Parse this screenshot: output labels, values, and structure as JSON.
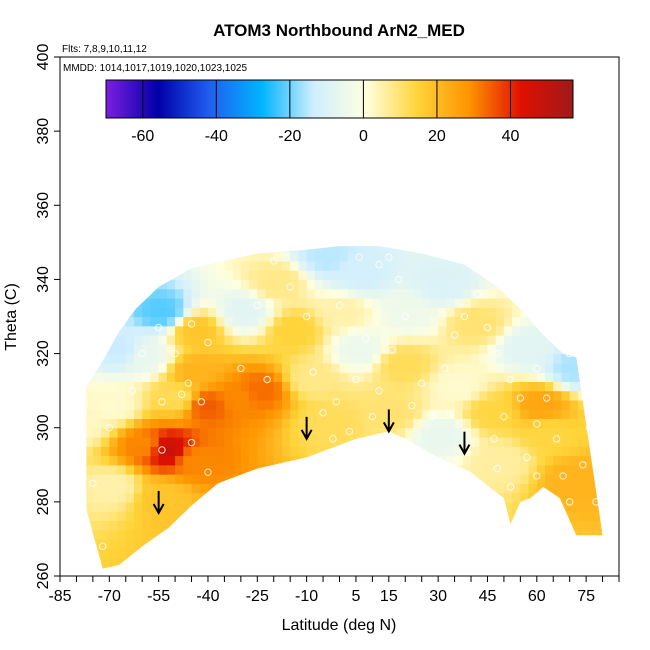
{
  "chart_data": {
    "type": "heatmap",
    "title": "ATOM3 Northbound ArN2_MED",
    "flights_note": "Flts: 7,8,9,10,11,12",
    "dates_note": "MMDD: 1014,1017,1019,1020,1023,1025",
    "xlabel": "Latitude (deg N)",
    "ylabel": "Theta (C)",
    "xlim": [
      -85,
      85
    ],
    "ylim": [
      260,
      400
    ],
    "x_ticks": [
      -85,
      -70,
      -55,
      -40,
      -25,
      -10,
      5,
      15,
      30,
      45,
      60,
      75
    ],
    "y_ticks": [
      260,
      280,
      300,
      320,
      340,
      360,
      380,
      400
    ],
    "colorbar": {
      "range": [
        -70,
        57
      ],
      "ticks": [
        -60,
        -40,
        -20,
        0,
        20,
        40
      ],
      "colors": [
        "#7b1fe0",
        "#0000a8",
        "#1f5ff0",
        "#00b4ff",
        "#cfeeff",
        "#ffffe0",
        "#ffd43a",
        "#ff9400",
        "#e01000",
        "#9e1a1a"
      ]
    },
    "upper_boundary": [
      [
        -77,
        311
      ],
      [
        -72,
        318
      ],
      [
        -67,
        326
      ],
      [
        -62,
        332
      ],
      [
        -55,
        338
      ],
      [
        -45,
        343
      ],
      [
        -35,
        345
      ],
      [
        -25,
        347
      ],
      [
        -10,
        348
      ],
      [
        0,
        349
      ],
      [
        12,
        349
      ],
      [
        25,
        347
      ],
      [
        38,
        344
      ],
      [
        48,
        338
      ],
      [
        55,
        332
      ],
      [
        62,
        325
      ],
      [
        68,
        320
      ],
      [
        72,
        319
      ]
    ],
    "lower_boundary": [
      [
        80,
        271
      ],
      [
        72,
        271
      ],
      [
        67,
        281
      ],
      [
        62,
        284
      ],
      [
        58,
        281
      ],
      [
        55,
        280
      ],
      [
        52,
        274
      ],
      [
        50,
        281
      ],
      [
        47,
        283
      ],
      [
        40,
        288
      ],
      [
        30,
        292
      ],
      [
        20,
        297
      ],
      [
        15,
        299
      ],
      [
        5,
        297
      ],
      [
        -10,
        292
      ],
      [
        -25,
        289
      ],
      [
        -37,
        285
      ],
      [
        -45,
        279
      ],
      [
        -52,
        273
      ],
      [
        -60,
        268
      ],
      [
        -67,
        263
      ],
      [
        -72,
        262
      ],
      [
        -77,
        278
      ]
    ],
    "cells": [
      {
        "lat": -80,
        "theta": 300,
        "value": 3
      },
      {
        "lat": -70,
        "theta": 283,
        "value": 5
      },
      {
        "lat": -70,
        "theta": 305,
        "value": 2
      },
      {
        "lat": -68,
        "theta": 320,
        "value": -14
      },
      {
        "lat": -60,
        "theta": 294,
        "value": 30
      },
      {
        "lat": -54,
        "theta": 293,
        "value": 48
      },
      {
        "lat": -55,
        "theta": 280,
        "value": 18
      },
      {
        "lat": -45,
        "theta": 290,
        "value": 30
      },
      {
        "lat": -50,
        "theta": 307,
        "value": 12
      },
      {
        "lat": -45,
        "theta": 314,
        "value": 22
      },
      {
        "lat": -42,
        "theta": 305,
        "value": 35
      },
      {
        "lat": -32,
        "theta": 307,
        "value": 30
      },
      {
        "lat": -25,
        "theta": 309,
        "value": 33
      },
      {
        "lat": -45,
        "theta": 325,
        "value": 18
      },
      {
        "lat": -55,
        "theta": 330,
        "value": -22
      },
      {
        "lat": -60,
        "theta": 318,
        "value": -6
      },
      {
        "lat": -30,
        "theta": 330,
        "value": -8
      },
      {
        "lat": -20,
        "theta": 338,
        "value": 8
      },
      {
        "lat": -15,
        "theta": 325,
        "value": 15
      },
      {
        "lat": -10,
        "theta": 312,
        "value": 8
      },
      {
        "lat": -5,
        "theta": 300,
        "value": 12
      },
      {
        "lat": 5,
        "theta": 320,
        "value": -5
      },
      {
        "lat": 5,
        "theta": 340,
        "value": -12
      },
      {
        "lat": -5,
        "theta": 345,
        "value": -15
      },
      {
        "lat": 18,
        "theta": 316,
        "value": 12
      },
      {
        "lat": 15,
        "theta": 303,
        "value": 10
      },
      {
        "lat": 20,
        "theta": 330,
        "value": -4
      },
      {
        "lat": 30,
        "theta": 337,
        "value": -10
      },
      {
        "lat": 35,
        "theta": 310,
        "value": 2
      },
      {
        "lat": 40,
        "theta": 327,
        "value": 10
      },
      {
        "lat": 45,
        "theta": 303,
        "value": 14
      },
      {
        "lat": 48,
        "theta": 290,
        "value": 6
      },
      {
        "lat": 60,
        "theta": 305,
        "value": 25
      },
      {
        "lat": 62,
        "theta": 297,
        "value": 14
      },
      {
        "lat": 70,
        "theta": 285,
        "value": 22
      },
      {
        "lat": 56,
        "theta": 320,
        "value": -8
      },
      {
        "lat": 70,
        "theta": 315,
        "value": -16
      },
      {
        "lat": 30,
        "theta": 297,
        "value": -6
      },
      {
        "lat": 0,
        "theta": 330,
        "value": 5
      }
    ],
    "sample_points": [
      [
        -72,
        268
      ],
      [
        -75,
        285
      ],
      [
        -70,
        300
      ],
      [
        -63,
        310
      ],
      [
        -60,
        320
      ],
      [
        -55,
        327
      ],
      [
        -50,
        320
      ],
      [
        -46,
        312
      ],
      [
        -54,
        307
      ],
      [
        -54,
        294
      ],
      [
        -45,
        296
      ],
      [
        -40,
        288
      ],
      [
        -48,
        309
      ],
      [
        -42,
        307
      ],
      [
        -45,
        328
      ],
      [
        -40,
        323
      ],
      [
        -30,
        316
      ],
      [
        -22,
        313
      ],
      [
        -25,
        333
      ],
      [
        -20,
        345
      ],
      [
        -15,
        338
      ],
      [
        -10,
        330
      ],
      [
        -8,
        315
      ],
      [
        -5,
        304
      ],
      [
        -2,
        297
      ],
      [
        3,
        299
      ],
      [
        -1,
        307
      ],
      [
        5,
        313
      ],
      [
        8,
        324
      ],
      [
        0,
        333
      ],
      [
        6,
        346
      ],
      [
        12,
        344
      ],
      [
        15,
        346
      ],
      [
        18,
        340
      ],
      [
        20,
        330
      ],
      [
        16,
        321
      ],
      [
        12,
        310
      ],
      [
        10,
        303
      ],
      [
        22,
        306
      ],
      [
        25,
        312
      ],
      [
        28,
        303
      ],
      [
        32,
        316
      ],
      [
        35,
        325
      ],
      [
        38,
        330
      ],
      [
        42,
        336
      ],
      [
        45,
        327
      ],
      [
        48,
        320
      ],
      [
        52,
        313
      ],
      [
        55,
        308
      ],
      [
        50,
        303
      ],
      [
        47,
        297
      ],
      [
        48,
        289
      ],
      [
        52,
        284
      ],
      [
        57,
        292
      ],
      [
        60,
        301
      ],
      [
        63,
        308
      ],
      [
        66,
        297
      ],
      [
        68,
        287
      ],
      [
        60,
        287
      ],
      [
        70,
        280
      ],
      [
        74,
        290
      ],
      [
        76,
        300
      ],
      [
        70,
        320
      ],
      [
        60,
        316
      ],
      [
        78,
        280
      ]
    ],
    "arrows": [
      {
        "lat": -55,
        "theta": 277
      },
      {
        "lat": -10,
        "theta": 297
      },
      {
        "lat": 15,
        "theta": 299
      },
      {
        "lat": 38,
        "theta": 293
      }
    ]
  }
}
